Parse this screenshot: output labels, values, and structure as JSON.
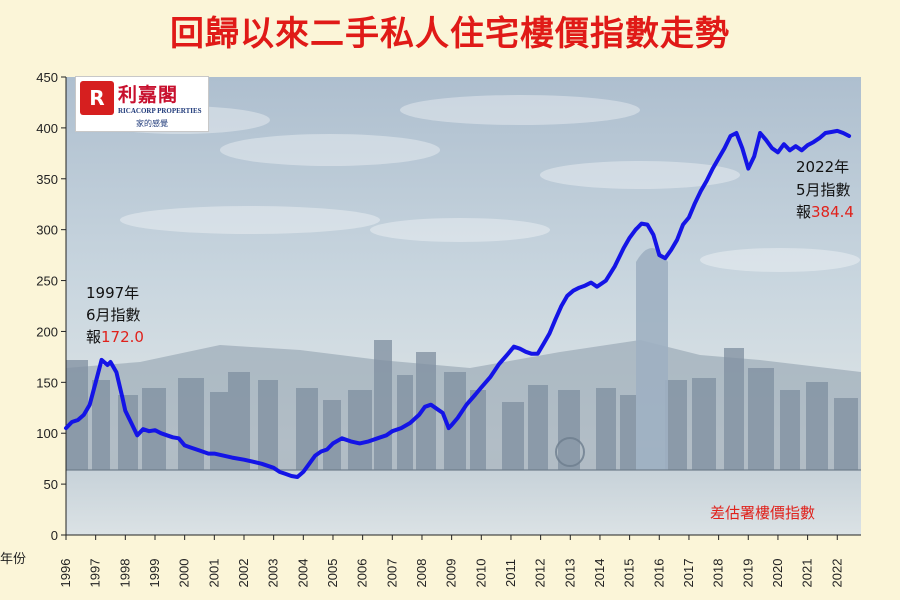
{
  "title": "回歸以來二手私人住宅樓價指數走勢",
  "logo": {
    "brand_cn": "利嘉閣",
    "brand_en": "RICACORP PROPERTIES",
    "tagline": "家的感覺",
    "mark_glyph": "R"
  },
  "colors": {
    "title": "#e01a17",
    "line": "#1414e6",
    "highlight": "#e0221c",
    "page_background": "#fbf5d8"
  },
  "annotations": {
    "start": {
      "year": "1997年",
      "month": "6月指數",
      "prefix": "報",
      "value": "172.0"
    },
    "end": {
      "year": "2022年",
      "month": "5月指數",
      "prefix": "報",
      "value": "384.4"
    },
    "source": "差估署樓價指數"
  },
  "chart_data": {
    "type": "line",
    "title": "回歸以來二手私人住宅樓價指數走勢",
    "xlabel": "年份",
    "ylabel": "",
    "xlim": [
      1996,
      2022.8
    ],
    "ylim": [
      0,
      450
    ],
    "y_ticks": [
      0,
      50,
      100,
      150,
      200,
      250,
      300,
      350,
      400,
      450
    ],
    "x_ticks": [
      "1996",
      "1997",
      "1998",
      "1999",
      "2000",
      "2001",
      "2002",
      "2003",
      "2004",
      "2005",
      "2006",
      "2007",
      "2008",
      "2009",
      "2010",
      "2011",
      "2012",
      "2013",
      "2014",
      "2015",
      "2016",
      "2017",
      "2018",
      "2019",
      "2020",
      "2021",
      "2022"
    ],
    "grid": false,
    "legend": "none",
    "series": [
      {
        "x": [
          1996.0,
          1996.2,
          1996.4,
          1996.6,
          1996.8,
          1997.0,
          1997.2,
          1997.4,
          1997.5,
          1997.7,
          1997.9,
          1998.0,
          1998.2,
          1998.4,
          1998.6,
          1998.8,
          1999.0,
          1999.2,
          1999.4,
          1999.6,
          1999.8,
          2000.0,
          2000.2,
          2000.5,
          2000.8,
          2001.0,
          2001.3,
          2001.6,
          2002.0,
          2002.3,
          2002.6,
          2003.0,
          2003.2,
          2003.4,
          2003.6,
          2003.8,
          2004.0,
          2004.2,
          2004.4,
          2004.6,
          2004.8,
          2005.0,
          2005.3,
          2005.6,
          2005.9,
          2006.2,
          2006.5,
          2006.8,
          2007.0,
          2007.3,
          2007.6,
          2007.9,
          2008.1,
          2008.3,
          2008.5,
          2008.7,
          2008.9,
          2009.0,
          2009.2,
          2009.5,
          2009.8,
          2010.0,
          2010.3,
          2010.6,
          2010.9,
          2011.1,
          2011.3,
          2011.5,
          2011.7,
          2011.9,
          2012.1,
          2012.3,
          2012.5,
          2012.7,
          2012.9,
          2013.1,
          2013.3,
          2013.5,
          2013.7,
          2013.9,
          2014.2,
          2014.5,
          2014.8,
          2015.0,
          2015.2,
          2015.4,
          2015.6,
          2015.8,
          2016.0,
          2016.2,
          2016.4,
          2016.6,
          2016.8,
          2017.0,
          2017.2,
          2017.4,
          2017.6,
          2017.8,
          2018.0,
          2018.2,
          2018.4,
          2018.6,
          2018.8,
          2019.0,
          2019.2,
          2019.4,
          2019.6,
          2019.8,
          2020.0,
          2020.2,
          2020.4,
          2020.6,
          2020.8,
          2021.0,
          2021.2,
          2021.4,
          2021.6,
          2021.8,
          2022.0,
          2022.2,
          2022.4
        ],
        "y": [
          105,
          111,
          113,
          118,
          128,
          150,
          172,
          167,
          170,
          160,
          135,
          122,
          110,
          98,
          104,
          102,
          103,
          100,
          98,
          96,
          95,
          88,
          86,
          83,
          80,
          80,
          78,
          76,
          74,
          72,
          70,
          66,
          62,
          60,
          58,
          57,
          62,
          70,
          78,
          82,
          84,
          90,
          95,
          92,
          90,
          92,
          95,
          98,
          102,
          105,
          110,
          118,
          126,
          128,
          124,
          120,
          105,
          108,
          115,
          128,
          138,
          145,
          155,
          168,
          178,
          185,
          183,
          180,
          178,
          178,
          188,
          198,
          212,
          225,
          235,
          240,
          243,
          245,
          248,
          244,
          250,
          264,
          282,
          292,
          300,
          306,
          305,
          295,
          275,
          272,
          280,
          290,
          305,
          312,
          326,
          338,
          348,
          360,
          370,
          380,
          392,
          395,
          380,
          360,
          372,
          395,
          388,
          380,
          376,
          384,
          378,
          382,
          378,
          383,
          386,
          390,
          395,
          396,
          397,
          395,
          392
        ]
      }
    ]
  }
}
